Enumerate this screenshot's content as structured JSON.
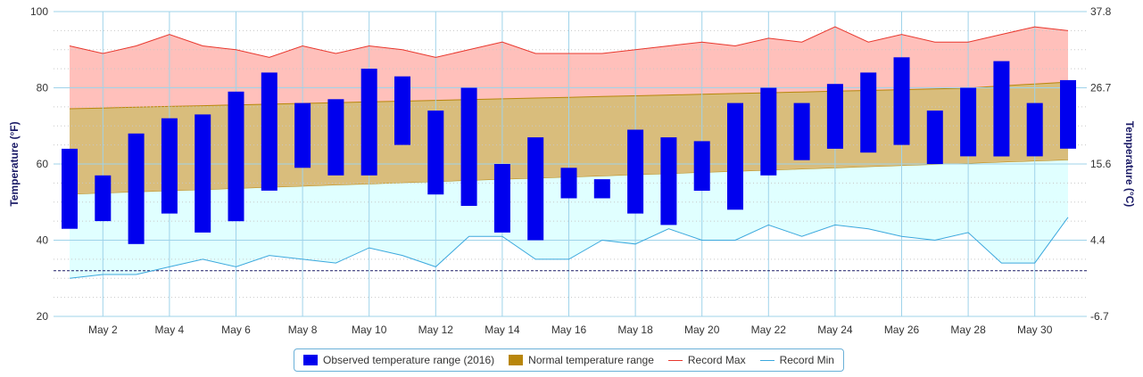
{
  "chart_data": {
    "type": "bar",
    "x": [
      "1",
      "2",
      "3",
      "4",
      "5",
      "6",
      "7",
      "8",
      "9",
      "10",
      "11",
      "12",
      "13",
      "14",
      "15",
      "16",
      "17",
      "18",
      "19",
      "20",
      "21",
      "22",
      "23",
      "24",
      "25",
      "26",
      "27",
      "28",
      "29",
      "30",
      "31"
    ],
    "x_tick_labels": [
      "May 2",
      "May 4",
      "May 6",
      "May 8",
      "May 10",
      "May 12",
      "May 14",
      "May 16",
      "May 18",
      "May 20",
      "May 22",
      "May 24",
      "May 26",
      "May 28",
      "May 30"
    ],
    "x_tick_days": [
      2,
      4,
      6,
      8,
      10,
      12,
      14,
      16,
      18,
      20,
      22,
      24,
      26,
      28,
      30
    ],
    "ylabel_left": "Temperature (°F)",
    "ylabel_right": "Temperature (°C)",
    "ylim": [
      20,
      100
    ],
    "y_ticks_left": [
      "20",
      "40",
      "60",
      "80",
      "100"
    ],
    "y_ticks_right": [
      "-6.7",
      "4.4",
      "15.6",
      "26.7",
      "37.8"
    ],
    "grid": true,
    "reference_line": 32,
    "series": [
      {
        "name": "Observed temperature range (2016)",
        "kind": "range-bar",
        "color": "#0000ee",
        "low": [
          43,
          45,
          39,
          47,
          42,
          45,
          53,
          59,
          57,
          57,
          65,
          52,
          49,
          42,
          40,
          51,
          51,
          47,
          44,
          53,
          48,
          57,
          61,
          64,
          63,
          65,
          60,
          62,
          62,
          62,
          64
        ],
        "high": [
          64,
          57,
          68,
          72,
          73,
          79,
          84,
          76,
          77,
          85,
          83,
          74,
          80,
          60,
          67,
          59,
          56,
          69,
          67,
          66,
          76,
          80,
          76,
          81,
          84,
          88,
          74,
          80,
          87,
          76,
          82
        ]
      },
      {
        "name": "Normal temperature range",
        "kind": "range-area",
        "color": "#b8860b",
        "low": [
          52,
          52.3,
          52.6,
          52.9,
          53.2,
          53.5,
          53.8,
          54.1,
          54.4,
          54.7,
          55,
          55.3,
          55.6,
          55.9,
          56.2,
          56.5,
          56.8,
          57.1,
          57.4,
          57.7,
          58,
          58.3,
          58.6,
          58.9,
          59.2,
          59.5,
          59.8,
          60.1,
          60.4,
          60.7,
          61
        ],
        "high": [
          74.5,
          74.7,
          74.9,
          75.1,
          75.3,
          75.5,
          75.7,
          75.9,
          76.1,
          76.3,
          76.5,
          76.7,
          76.9,
          77.1,
          77.3,
          77.5,
          77.7,
          77.9,
          78.1,
          78.3,
          78.5,
          78.7,
          78.9,
          79.1,
          79.3,
          79.5,
          79.7,
          79.9,
          80.5,
          81,
          81.5
        ]
      },
      {
        "name": "Record Max",
        "kind": "line",
        "color": "#e8372d",
        "fill": "#ffc0bb",
        "values": [
          91,
          89,
          91,
          94,
          91,
          90,
          88,
          91,
          89,
          91,
          90,
          88,
          90,
          92,
          89,
          89,
          89,
          90,
          91,
          92,
          91,
          93,
          92,
          96,
          92,
          94,
          92,
          92,
          94,
          96,
          95
        ]
      },
      {
        "name": "Record Min",
        "kind": "line",
        "color": "#3ba8dd",
        "fill": "#e0ffff",
        "values": [
          30,
          31,
          31,
          33,
          35,
          33,
          36,
          35,
          34,
          38,
          36,
          33,
          41,
          41,
          35,
          35,
          40,
          39,
          43,
          40,
          40,
          44,
          41,
          44,
          43,
          41,
          40,
          42,
          34,
          34,
          46
        ]
      }
    ]
  }
}
